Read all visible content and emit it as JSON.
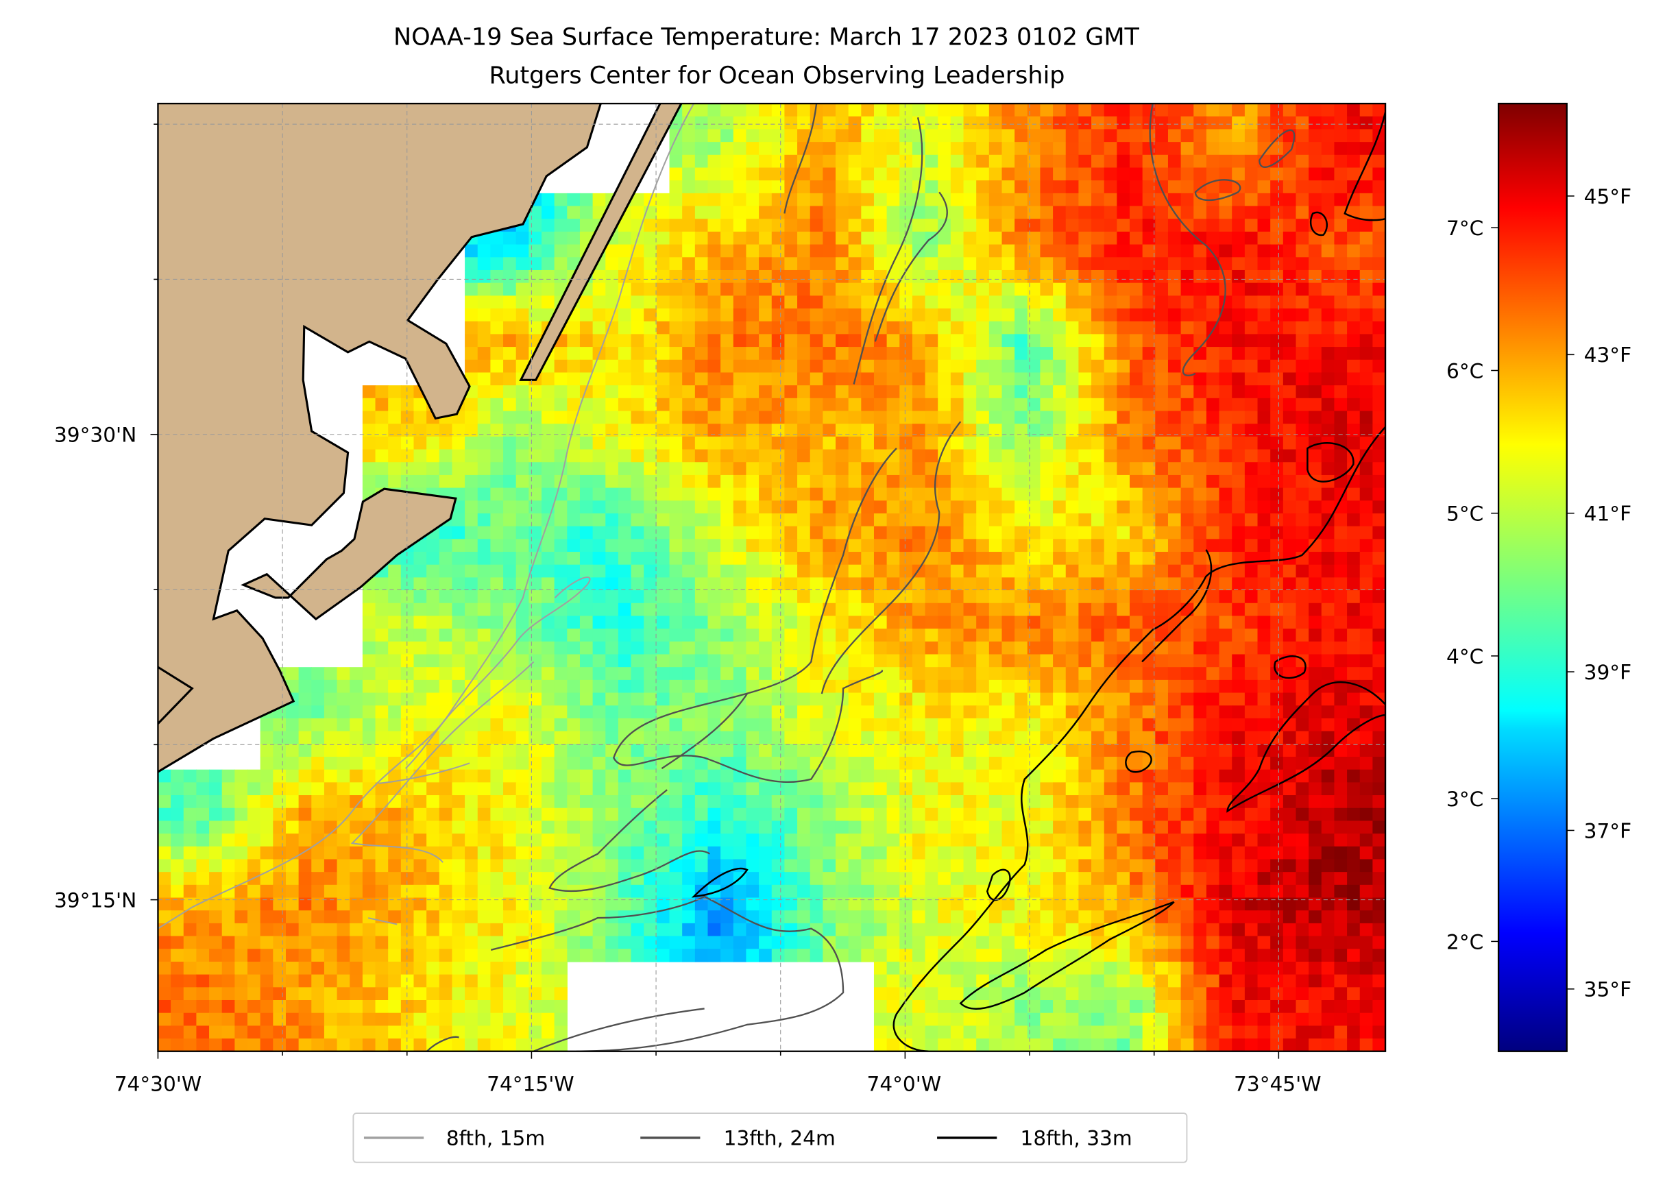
{
  "chart_data": {
    "type": "heatmap",
    "title": "NOAA-19 Sea Surface Temperature: March 17 2023 0102 GMT",
    "subtitle": "Rutgers Center for Ocean Observing Leadership",
    "x_ticks": [
      "74°30'W",
      "74°15'W",
      "74°0'W",
      "73°45'W"
    ],
    "y_ticks": [
      "39°30'N",
      "39°15'N"
    ],
    "lon_range": [
      -74.5,
      -73.68
    ],
    "lat_range": [
      39.17,
      39.68
    ],
    "colorbar": {
      "colormap": "jet",
      "range_c": [
        1.23,
        7.87
      ],
      "ticks_c": [
        "7°C",
        "6°C",
        "5°C",
        "4°C",
        "3°C",
        "2°C"
      ],
      "ticks_c_values": [
        7,
        6,
        5,
        4,
        3,
        2
      ],
      "ticks_f": [
        "45°F",
        "43°F",
        "41°F",
        "39°F",
        "37°F",
        "35°F"
      ],
      "ticks_f_values": [
        45,
        43,
        41,
        39,
        37,
        35
      ]
    },
    "sst_grid_c": [
      [
        null,
        null,
        null,
        null,
        null,
        4.8,
        6.0,
        5.0,
        6.2,
        6.8,
        6.0,
        7.0
      ],
      [
        null,
        null,
        null,
        3.5,
        5.2,
        5.8,
        6.2,
        4.6,
        6.3,
        6.8,
        7.0,
        6.5
      ],
      [
        null,
        null,
        null,
        6.0,
        5.4,
        6.2,
        6.3,
        6.0,
        4.2,
        6.4,
        7.0,
        7.0
      ],
      [
        null,
        null,
        5.8,
        4.6,
        5.4,
        6.0,
        5.8,
        6.0,
        4.6,
        6.2,
        6.8,
        7.2
      ],
      [
        null,
        null,
        4.0,
        4.4,
        4.0,
        5.2,
        6.0,
        6.2,
        5.4,
        5.6,
        6.8,
        7.0
      ],
      [
        null,
        null,
        5.0,
        4.6,
        4.0,
        4.6,
        5.4,
        6.0,
        6.2,
        6.4,
        6.6,
        7.0
      ],
      [
        null,
        4.6,
        5.2,
        5.3,
        4.5,
        4.6,
        5.2,
        5.4,
        5.4,
        6.2,
        7.0,
        7.2
      ],
      [
        4.3,
        6.0,
        5.8,
        5.3,
        4.6,
        4.0,
        4.6,
        5.4,
        5.2,
        6.3,
        7.0,
        7.5
      ],
      [
        6.0,
        6.2,
        5.8,
        5.4,
        4.4,
        3.0,
        4.5,
        5.2,
        5.4,
        6.0,
        7.2,
        7.6
      ],
      [
        6.3,
        6.0,
        5.6,
        5.2,
        null,
        null,
        null,
        5.2,
        4.7,
        4.6,
        7.0,
        7.0
      ]
    ],
    "legend": {
      "placement": "bottom-center",
      "entries": [
        {
          "label": "8fth, 15m",
          "color": "#a0a0a0"
        },
        {
          "label": "13fth, 24m",
          "color": "#505050"
        },
        {
          "label": "18fth, 33m",
          "color": "#000000"
        }
      ]
    },
    "land_color": "#d2b48c"
  }
}
